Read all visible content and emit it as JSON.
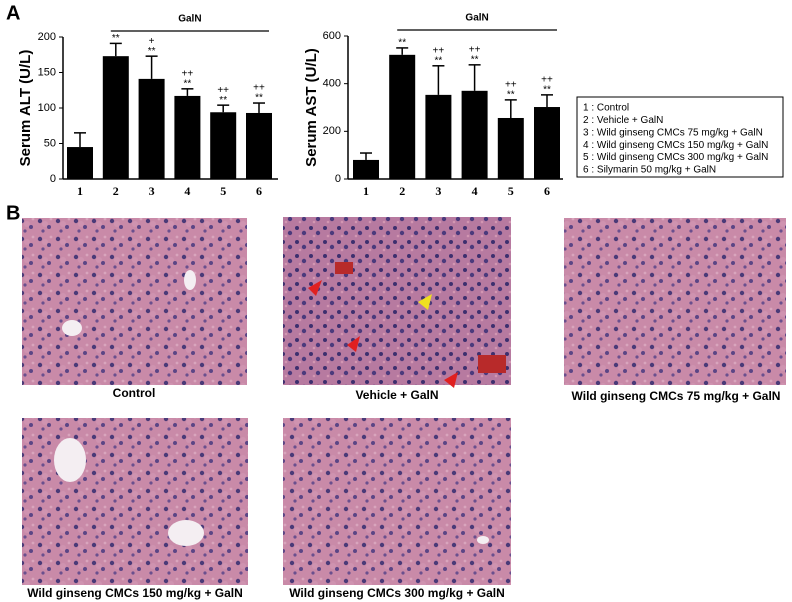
{
  "panel_labels": [
    "A",
    "B"
  ],
  "chart_data": [
    {
      "type": "bar",
      "y_label": "Serum ALT  (U/L)",
      "group_label": "GalN",
      "categories": [
        "1",
        "2",
        "3",
        "4",
        "5",
        "6"
      ],
      "values": [
        45,
        173,
        141,
        117,
        94,
        93
      ],
      "errors": [
        20,
        18,
        32,
        10,
        10,
        14
      ],
      "marks_vs_control": [
        null,
        "**",
        "**",
        "**",
        "**",
        "**"
      ],
      "marks_vs_vehicle": [
        null,
        null,
        "+",
        "++",
        "++",
        "++"
      ],
      "color": "#000000",
      "ylim": [
        0,
        200
      ],
      "yticks": [
        0,
        50,
        100,
        150,
        200
      ]
    },
    {
      "type": "bar",
      "y_label": "Serum AST  (U/L)",
      "group_label": "GalN",
      "categories": [
        "1",
        "2",
        "3",
        "4",
        "5",
        "6"
      ],
      "values": [
        80,
        521,
        353,
        370,
        256,
        302
      ],
      "errors": [
        29,
        29,
        122,
        109,
        76,
        51
      ],
      "marks_vs_control": [
        null,
        "**",
        "**",
        "**",
        "**",
        "**"
      ],
      "marks_vs_vehicle": [
        null,
        null,
        "++",
        "++",
        "++",
        "++"
      ],
      "color": "#000000",
      "ylim": [
        0,
        600
      ],
      "yticks": [
        0,
        200,
        400,
        600
      ]
    }
  ],
  "legend": [
    "1 : Control",
    "2 : Vehicle  + GalN",
    "3 : Wild ginseng CMCs 75 mg/kg  + GalN",
    "4 : Wild ginseng CMCs 150 mg/kg  + GalN",
    "5 : Wild ginseng CMCs 300 mg/kg + GalN",
    "6 : Silymarin 50 mg/kg + GalN"
  ],
  "images": [
    "Control",
    "Vehicle + GalN",
    "Wild ginseng CMCs 75 mg/kg + GalN",
    "Wild ginseng CMCs 150 mg/kg + GalN",
    "Wild ginseng CMCs 300 mg/kg + GalN"
  ]
}
